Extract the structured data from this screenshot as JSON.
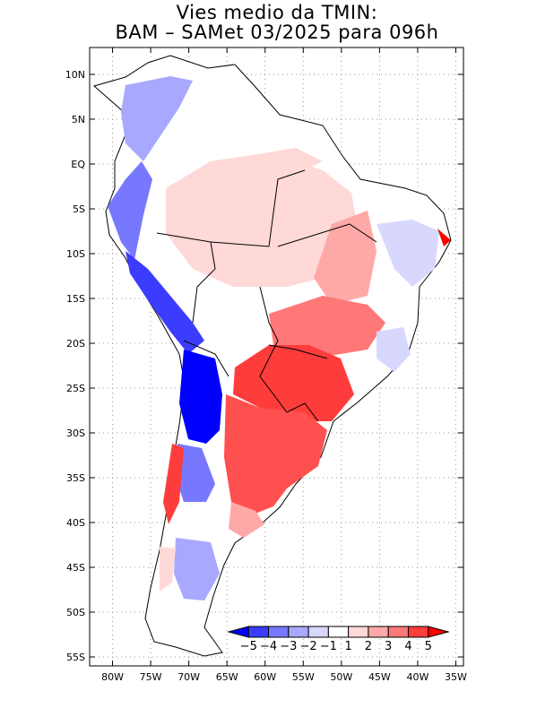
{
  "title": {
    "line1": "Vies medio da TMIN:",
    "line2": "BAM – SAMet 03/2025  para 096h"
  },
  "axes": {
    "lat_labels": [
      "10N",
      "5N",
      "EQ",
      "5S",
      "10S",
      "15S",
      "20S",
      "25S",
      "30S",
      "35S",
      "40S",
      "45S",
      "50S",
      "55S"
    ],
    "lat_values": [
      10,
      5,
      0,
      -5,
      -10,
      -15,
      -20,
      -25,
      -30,
      -35,
      -40,
      -45,
      -50,
      -55
    ],
    "lon_labels": [
      "80W",
      "75W",
      "70W",
      "65W",
      "60W",
      "55W",
      "50W",
      "45W",
      "40W",
      "35W"
    ],
    "lon_values": [
      -80,
      -75,
      -70,
      -65,
      -60,
      -55,
      -50,
      -45,
      -40,
      -35
    ],
    "lat_range": [
      -56,
      13
    ],
    "lon_range": [
      -83,
      -34
    ]
  },
  "colorbar": {
    "labels": [
      "−5",
      "−4",
      "−3",
      "−2",
      "−1",
      "1",
      "2",
      "3",
      "4",
      "5"
    ],
    "colors": [
      "#0000ff",
      "#3c3cff",
      "#7878ff",
      "#a8a8ff",
      "#d8d8ff",
      "#ffffff",
      "#ffd8d8",
      "#ffa8a8",
      "#ff7878",
      "#ff3c3c",
      "#ff0000"
    ]
  },
  "colors": {
    "land_neutral": "#ffffff",
    "border": "#000000"
  }
}
